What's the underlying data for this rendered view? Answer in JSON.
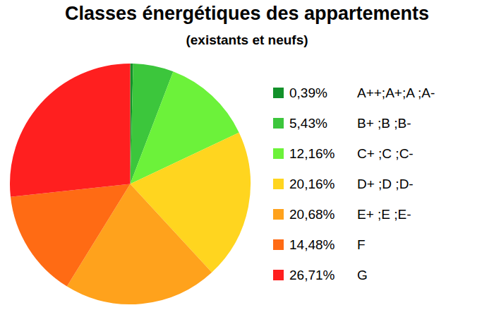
{
  "chart_data": {
    "type": "pie",
    "title": "Classes énergétiques des appartements",
    "subtitle": "(existants et neufs)",
    "categories": [
      "A++;A+;A ;A-",
      "B+ ;B ;B-",
      "C+ ;C ;C-",
      "D+ ;D ;D-",
      "E+ ;E ;E-",
      "F",
      "G"
    ],
    "values": [
      0.39,
      5.43,
      12.16,
      20.16,
      20.68,
      14.48,
      26.71
    ],
    "value_labels": [
      "0,39%",
      "5,43%",
      "12,16%",
      "20,16%",
      "20,68%",
      "14,48%",
      "26,71%"
    ],
    "colors": [
      "#12912a",
      "#3cc63c",
      "#6cf23a",
      "#ffd51f",
      "#ffa21c",
      "#ff6b14",
      "#ff1f1f"
    ],
    "legend": "right"
  }
}
